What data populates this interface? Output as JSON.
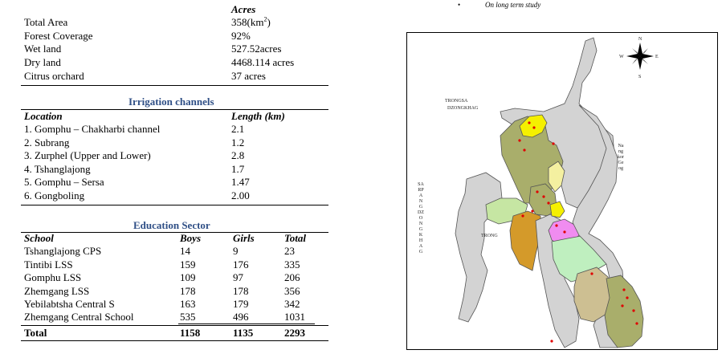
{
  "land_table": {
    "unit_header": "Acres",
    "rows": [
      {
        "label": "Total Area",
        "value": "358(km",
        "sup": "2",
        "value_after": ")"
      },
      {
        "label": "Forest Coverage",
        "value": "92%"
      },
      {
        "label": "Wet land",
        "value": "527.52acres"
      },
      {
        "label": "Dry land",
        "value": "4468.114 acres"
      },
      {
        "label": "Citrus orchard",
        "value": "37 acres"
      }
    ]
  },
  "irrigation": {
    "title": "Irrigation channels",
    "col_location": "Location",
    "col_length": "Length (km)",
    "rows": [
      {
        "location": "1. Gomphu – Chakharbi channel",
        "length": "2.1"
      },
      {
        "location": "2. Subrang",
        "length": "1.2"
      },
      {
        "location": "3. Zurphel (Upper and Lower)",
        "length": "2.8"
      },
      {
        "location": "4. Tshanglajong",
        "length": "1.7"
      },
      {
        "location": "5. Gomphu – Sersa",
        "length": "1.47"
      },
      {
        "location": "6. Gongboling",
        "length": "2.00"
      }
    ]
  },
  "education": {
    "title": "Education Sector",
    "col_school": "School",
    "col_boys": "Boys",
    "col_girls": "Girls",
    "col_total": "Total",
    "rows": [
      {
        "school": "Tshanglajong CPS",
        "boys": "14",
        "girls": "9",
        "total": "23"
      },
      {
        "school": "Tintibi LSS",
        "boys": "159",
        "girls": "176",
        "total": "335"
      },
      {
        "school": "Gomphu LSS",
        "boys": "109",
        "girls": "97",
        "total": "206"
      },
      {
        "school": "Zhemgang LSS",
        "boys": "178",
        "girls": "178",
        "total": "356"
      },
      {
        "school": "Yebilabtsha Central S",
        "boys": "163",
        "girls": "179",
        "total": "342"
      },
      {
        "school": "Zhemgang Central School",
        "boys": "535",
        "girls": "496",
        "total": "1031"
      }
    ],
    "total_row": {
      "label": "Total",
      "boys": "1158",
      "girls": "1135",
      "total": "2293"
    }
  },
  "note": {
    "bullet": "•",
    "text": "On long term study"
  },
  "map": {
    "compass": {
      "n": "N",
      "s": "S",
      "e": "E",
      "w": "W"
    },
    "label_trongsa": "TRONGSA",
    "label_dzongkhag": "DZONGKHAG",
    "label_trong": "TRONG",
    "label_sarpang": "SARPANG DZONGKHAG",
    "label_nangkor": "Nangkor Geog",
    "colors": {
      "grey": "#d3d3d3",
      "olive": "#a9ae6b",
      "yellow": "#f5f000",
      "pale_yellow": "#f4f0a0",
      "light_green": "#c6e6a3",
      "orange": "#d49a2a",
      "pink": "#f08cf0",
      "mint": "#bfefbf",
      "tan": "#cdbf92",
      "dot": "#e00000"
    }
  }
}
